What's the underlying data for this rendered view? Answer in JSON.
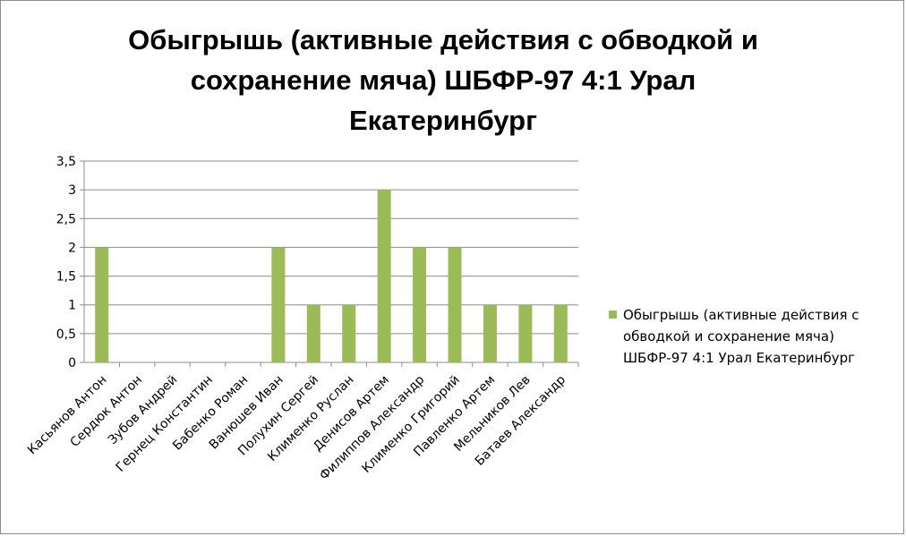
{
  "chart_data": {
    "type": "bar",
    "title": "Обыгрышь (активные действия с обводкой и сохранение мяча) ШБФР-97  4:1  Урал Екатеринбург",
    "title_lines": [
      "Обыгрышь (активные действия с обводкой и",
      "сохранение мяча) ШБФР-97  4:1  Урал",
      "Екатеринбург"
    ],
    "categories": [
      "Касьянов Антон",
      "Сердюк Антон",
      "Зубов Андрей",
      "Гернец Константин",
      "Бабенко Роман",
      "Ванюшев Иван",
      "Полухин Сергей",
      "Клименко Руслан",
      "Денисов Артем",
      "Филиппов Александр",
      "Клименко Григорий",
      "Павленко Артем",
      "Мельников Лев",
      "Батаев Александр"
    ],
    "series": [
      {
        "name": "Обыгрышь (активные действия с обводкой и сохранение мяча) ШБФР-97  4:1  Урал Екатеринбург",
        "values": [
          2,
          0,
          0,
          0,
          0,
          2,
          1,
          1,
          3,
          2,
          2,
          1,
          1,
          1
        ]
      }
    ],
    "yticks": [
      "0",
      "0,5",
      "1",
      "1,5",
      "2",
      "2,5",
      "3",
      "3,5"
    ],
    "ylim": [
      0,
      3.5
    ],
    "grid": true,
    "legend_position": "right",
    "legend_lines": [
      "Обыгрышь (активные действия с",
      "обводкой и сохранение мяча)",
      "ШБФР-97  4:1  Урал Екатеринбург"
    ],
    "colors": {
      "bar": "#9bbb59",
      "grid": "#8c8c8c",
      "axis": "#8c8c8c"
    }
  }
}
